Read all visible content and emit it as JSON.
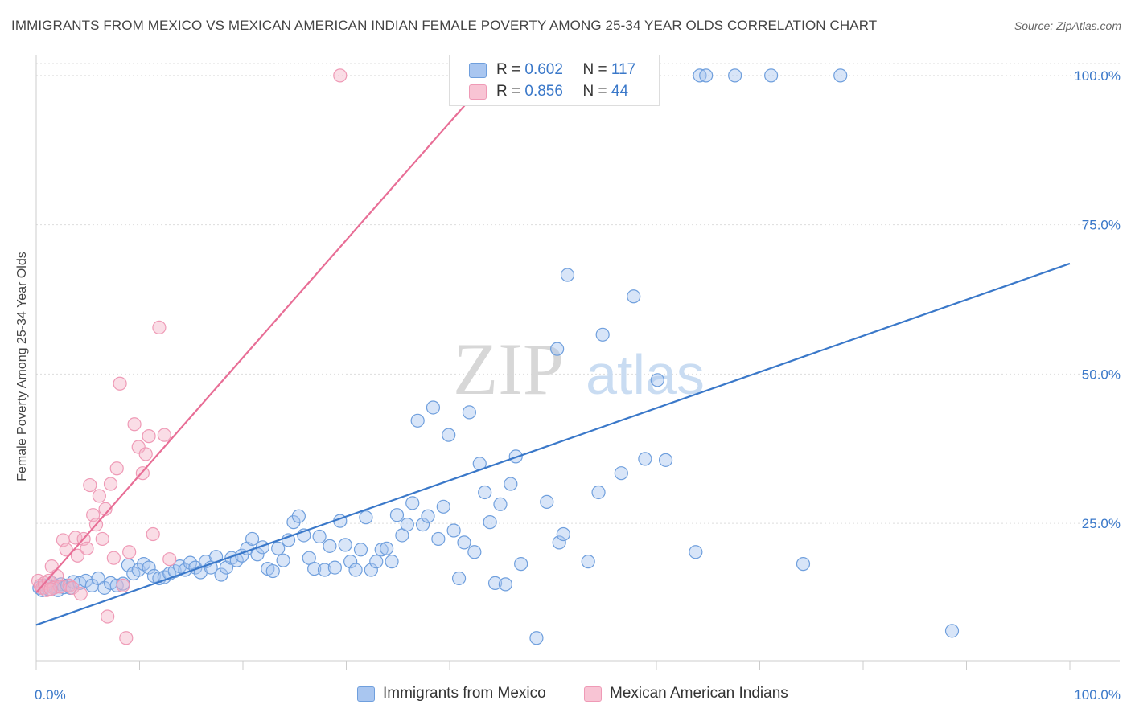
{
  "title": "IMMIGRANTS FROM MEXICO VS MEXICAN AMERICAN INDIAN FEMALE POVERTY AMONG 25-34 YEAR OLDS CORRELATION CHART",
  "source": "Source: ZipAtlas.com",
  "watermark": {
    "zip": "ZIP",
    "atlas": "atlas"
  },
  "legend": [
    {
      "r_label": "R =",
      "r_value": "0.602",
      "n_label": "N =",
      "n_value": "117"
    },
    {
      "r_label": "R =",
      "r_value": "0.856",
      "n_label": "N =",
      "n_value": "44"
    }
  ],
  "colors": {
    "blue": "#3a78c9",
    "blue_fill": "#a9c6f0",
    "pink": "#e86e96",
    "pink_fill": "#f4b4c8",
    "grid": "#dddddd"
  },
  "chart_data": {
    "type": "scatter",
    "title": "IMMIGRANTS FROM MEXICO VS MEXICAN AMERICAN INDIAN FEMALE POVERTY AMONG 25-34 YEAR OLDS CORRELATION CHART",
    "xlabel": "",
    "ylabel": "Female Poverty Among 25-34 Year Olds",
    "xlim": [
      0,
      100
    ],
    "ylim": [
      2,
      102
    ],
    "x_tick_labels": [
      "0.0%",
      "100.0%"
    ],
    "y_ticks": [
      25,
      50,
      75,
      100
    ],
    "y_tick_labels": [
      "25.0%",
      "50.0%",
      "75.0%",
      "100.0%"
    ],
    "series": [
      {
        "name": "Immigrants from Mexico",
        "color": "#3a78c9",
        "trend": {
          "x": [
            0,
            100
          ],
          "y": [
            8.0,
            68.5
          ]
        },
        "points": [
          [
            0.3,
            14.2
          ],
          [
            0.6,
            13.8
          ],
          [
            0.9,
            14.6
          ],
          [
            1.2,
            14.0
          ],
          [
            1.5,
            15.0
          ],
          [
            1.8,
            14.4
          ],
          [
            2.1,
            13.8
          ],
          [
            2.4,
            14.8
          ],
          [
            2.7,
            14.3
          ],
          [
            3.0,
            14.6
          ],
          [
            3.3,
            14.2
          ],
          [
            3.6,
            15.2
          ],
          [
            4.2,
            15.0
          ],
          [
            4.8,
            15.4
          ],
          [
            5.4,
            14.6
          ],
          [
            6.0,
            15.8
          ],
          [
            6.6,
            14.2
          ],
          [
            7.2,
            15.0
          ],
          [
            7.8,
            14.6
          ],
          [
            8.4,
            14.9
          ],
          [
            8.9,
            18.0
          ],
          [
            9.4,
            16.6
          ],
          [
            9.9,
            17.2
          ],
          [
            10.4,
            18.2
          ],
          [
            10.9,
            17.6
          ],
          [
            11.4,
            16.2
          ],
          [
            11.9,
            15.8
          ],
          [
            12.4,
            16.0
          ],
          [
            12.9,
            16.6
          ],
          [
            13.4,
            17.0
          ],
          [
            13.9,
            17.8
          ],
          [
            14.4,
            17.2
          ],
          [
            14.9,
            18.4
          ],
          [
            15.4,
            17.6
          ],
          [
            15.9,
            16.8
          ],
          [
            16.4,
            18.6
          ],
          [
            16.9,
            17.6
          ],
          [
            17.4,
            19.4
          ],
          [
            17.9,
            16.4
          ],
          [
            18.4,
            17.6
          ],
          [
            18.9,
            19.2
          ],
          [
            19.4,
            18.8
          ],
          [
            19.9,
            19.6
          ],
          [
            20.4,
            20.8
          ],
          [
            20.9,
            22.4
          ],
          [
            21.4,
            19.8
          ],
          [
            21.9,
            21.0
          ],
          [
            22.4,
            17.4
          ],
          [
            22.9,
            17.0
          ],
          [
            23.4,
            20.8
          ],
          [
            23.9,
            18.8
          ],
          [
            24.4,
            22.2
          ],
          [
            24.9,
            25.2
          ],
          [
            25.4,
            26.2
          ],
          [
            25.9,
            23.0
          ],
          [
            26.4,
            19.2
          ],
          [
            26.9,
            17.4
          ],
          [
            27.4,
            22.8
          ],
          [
            27.9,
            17.2
          ],
          [
            28.4,
            21.2
          ],
          [
            28.9,
            17.6
          ],
          [
            29.4,
            25.4
          ],
          [
            29.9,
            21.4
          ],
          [
            30.4,
            18.6
          ],
          [
            30.9,
            17.2
          ],
          [
            31.4,
            20.6
          ],
          [
            31.9,
            26.0
          ],
          [
            32.4,
            17.2
          ],
          [
            32.9,
            18.6
          ],
          [
            33.4,
            20.6
          ],
          [
            33.9,
            20.8
          ],
          [
            34.4,
            18.6
          ],
          [
            34.9,
            26.4
          ],
          [
            35.4,
            23.0
          ],
          [
            35.9,
            24.8
          ],
          [
            36.4,
            28.4
          ],
          [
            36.9,
            42.2
          ],
          [
            37.4,
            24.8
          ],
          [
            37.9,
            26.2
          ],
          [
            38.4,
            44.4
          ],
          [
            38.9,
            22.4
          ],
          [
            39.4,
            27.8
          ],
          [
            39.9,
            39.8
          ],
          [
            40.4,
            23.8
          ],
          [
            40.9,
            15.8
          ],
          [
            41.4,
            21.8
          ],
          [
            41.9,
            43.6
          ],
          [
            42.4,
            20.2
          ],
          [
            42.9,
            35.0
          ],
          [
            43.4,
            30.2
          ],
          [
            43.9,
            25.2
          ],
          [
            44.4,
            15.0
          ],
          [
            44.9,
            28.2
          ],
          [
            45.4,
            14.8
          ],
          [
            45.9,
            31.6
          ],
          [
            46.4,
            36.2
          ],
          [
            46.9,
            18.2
          ],
          [
            48.4,
            5.8
          ],
          [
            49.4,
            28.6
          ],
          [
            50.6,
            21.8
          ],
          [
            50.4,
            54.2
          ],
          [
            51.0,
            23.2
          ],
          [
            51.4,
            66.6
          ],
          [
            53.4,
            18.6
          ],
          [
            54.4,
            30.2
          ],
          [
            54.8,
            56.6
          ],
          [
            56.6,
            33.4
          ],
          [
            57.8,
            63.0
          ],
          [
            58.9,
            35.8
          ],
          [
            60.1,
            49.0
          ],
          [
            60.9,
            35.6
          ],
          [
            63.8,
            20.2
          ],
          [
            64.2,
            100
          ],
          [
            64.8,
            100
          ],
          [
            67.6,
            100
          ],
          [
            71.1,
            100
          ],
          [
            74.2,
            18.2
          ],
          [
            77.8,
            100
          ],
          [
            88.6,
            7.0
          ]
        ]
      },
      {
        "name": "Mexican American Indians",
        "color": "#e86e96",
        "trend": {
          "x": [
            0,
            44
          ],
          "y": [
            13.4,
            100
          ]
        },
        "points": [
          [
            0.2,
            15.4
          ],
          [
            0.4,
            14.6
          ],
          [
            0.6,
            14.2
          ],
          [
            0.8,
            15.0
          ],
          [
            1.0,
            13.8
          ],
          [
            1.2,
            15.4
          ],
          [
            1.5,
            17.8
          ],
          [
            1.7,
            14.2
          ],
          [
            2.0,
            16.2
          ],
          [
            2.3,
            14.4
          ],
          [
            2.6,
            22.2
          ],
          [
            2.9,
            20.6
          ],
          [
            3.2,
            14.6
          ],
          [
            3.5,
            14.2
          ],
          [
            3.8,
            22.6
          ],
          [
            4.0,
            19.6
          ],
          [
            4.3,
            13.2
          ],
          [
            4.6,
            22.4
          ],
          [
            4.9,
            20.8
          ],
          [
            5.2,
            31.4
          ],
          [
            5.5,
            26.4
          ],
          [
            5.8,
            24.8
          ],
          [
            6.1,
            29.6
          ],
          [
            6.4,
            22.4
          ],
          [
            6.7,
            27.4
          ],
          [
            6.9,
            9.4
          ],
          [
            7.2,
            31.6
          ],
          [
            7.5,
            19.2
          ],
          [
            7.8,
            34.2
          ],
          [
            8.1,
            48.4
          ],
          [
            8.4,
            14.6
          ],
          [
            8.7,
            5.8
          ],
          [
            9.0,
            20.2
          ],
          [
            9.5,
            41.6
          ],
          [
            9.9,
            37.8
          ],
          [
            10.3,
            33.4
          ],
          [
            10.6,
            36.6
          ],
          [
            10.9,
            39.6
          ],
          [
            11.3,
            23.2
          ],
          [
            11.9,
            57.8
          ],
          [
            12.4,
            39.8
          ],
          [
            12.9,
            19.0
          ],
          [
            29.4,
            100
          ],
          [
            1.4,
            14.0
          ]
        ]
      }
    ]
  },
  "bottom_legend": [
    "Immigrants from Mexico",
    "Mexican American Indians"
  ]
}
